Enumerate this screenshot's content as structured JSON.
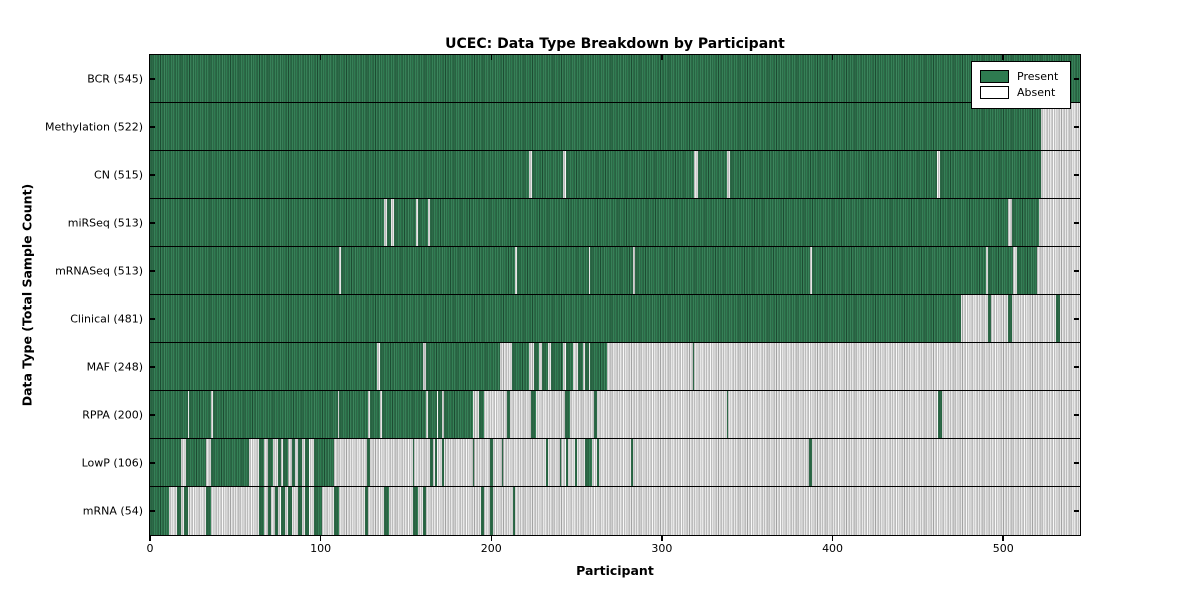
{
  "title": "UCEC: Data Type Breakdown by Participant",
  "xlabel": "Participant",
  "ylabel": "Data Type (Total Sample Count)",
  "colors": {
    "present": "#2e7b50",
    "absent": "#d6d6d6",
    "frame": "#000000"
  },
  "legend": [
    {
      "label": "Present"
    },
    {
      "label": "Absent"
    }
  ],
  "chart_data": {
    "type": "heatmap",
    "x_max": 545,
    "x_ticks": [
      0,
      100,
      200,
      300,
      400,
      500
    ],
    "grid": false,
    "legend_position": "upper right",
    "rows": [
      {
        "name": "bcr",
        "label": "BCR (545)",
        "count": 545,
        "present": [
          [
            0,
            545
          ]
        ]
      },
      {
        "name": "methylation",
        "label": "Methylation (522)",
        "count": 522,
        "present": [
          [
            0,
            522
          ]
        ]
      },
      {
        "name": "cn",
        "label": "CN (515)",
        "count": 515,
        "present": [
          [
            0,
            222
          ],
          [
            224,
            242
          ],
          [
            244,
            319
          ],
          [
            321,
            338
          ],
          [
            340,
            461
          ],
          [
            463,
            522
          ]
        ]
      },
      {
        "name": "mirseq",
        "label": "miRSeq (513)",
        "count": 513,
        "present": [
          [
            0,
            137
          ],
          [
            139,
            141
          ],
          [
            143,
            156
          ],
          [
            157,
            163
          ],
          [
            164,
            503
          ],
          [
            505,
            521
          ]
        ]
      },
      {
        "name": "mrnaseq",
        "label": "mRNASeq (513)",
        "count": 513,
        "present": [
          [
            0,
            111
          ],
          [
            112,
            214
          ],
          [
            215,
            257
          ],
          [
            258,
            283
          ],
          [
            284,
            387
          ],
          [
            388,
            490
          ],
          [
            491,
            506
          ],
          [
            508,
            520
          ]
        ]
      },
      {
        "name": "clinical",
        "label": "Clinical (481)",
        "count": 481,
        "present": [
          [
            0,
            475
          ],
          [
            491,
            493
          ],
          [
            503,
            505
          ],
          [
            531,
            533
          ]
        ]
      },
      {
        "name": "maf",
        "label": "MAF (248)",
        "count": 248,
        "present": [
          [
            0,
            133
          ],
          [
            135,
            160
          ],
          [
            162,
            205
          ],
          [
            212,
            222
          ],
          [
            225,
            228
          ],
          [
            230,
            233
          ],
          [
            235,
            242
          ],
          [
            244,
            248
          ],
          [
            251,
            254
          ],
          [
            255,
            257
          ],
          [
            258,
            268
          ],
          [
            318,
            319
          ]
        ]
      },
      {
        "name": "rppa",
        "label": "RPPA (200)",
        "count": 200,
        "present": [
          [
            0,
            22
          ],
          [
            23,
            36
          ],
          [
            37,
            110
          ],
          [
            111,
            128
          ],
          [
            129,
            135
          ],
          [
            136,
            162
          ],
          [
            163,
            168
          ],
          [
            169,
            171
          ],
          [
            172,
            189
          ],
          [
            193,
            196
          ],
          [
            209,
            211
          ],
          [
            223,
            226
          ],
          [
            243,
            246
          ],
          [
            260,
            262
          ],
          [
            338,
            339
          ],
          [
            462,
            464
          ]
        ]
      },
      {
        "name": "lowp",
        "label": "LowP (106)",
        "count": 106,
        "present": [
          [
            0,
            18
          ],
          [
            21,
            33
          ],
          [
            36,
            58
          ],
          [
            64,
            67
          ],
          [
            69,
            72
          ],
          [
            75,
            77
          ],
          [
            78,
            81
          ],
          [
            83,
            85
          ],
          [
            87,
            89
          ],
          [
            91,
            93
          ],
          [
            96,
            108
          ],
          [
            127,
            129
          ],
          [
            154,
            155
          ],
          [
            164,
            166
          ],
          [
            167,
            168
          ],
          [
            171,
            172
          ],
          [
            189,
            190
          ],
          [
            199,
            201
          ],
          [
            206,
            207
          ],
          [
            232,
            233
          ],
          [
            240,
            241
          ],
          [
            244,
            245
          ],
          [
            249,
            250
          ],
          [
            255,
            259
          ],
          [
            262,
            263
          ],
          [
            282,
            283
          ],
          [
            386,
            388
          ]
        ]
      },
      {
        "name": "mrna",
        "label": "mRNA (54)",
        "count": 54,
        "present": [
          [
            0,
            11
          ],
          [
            16,
            18
          ],
          [
            20,
            22
          ],
          [
            33,
            36
          ],
          [
            64,
            67
          ],
          [
            69,
            71
          ],
          [
            73,
            75
          ],
          [
            77,
            79
          ],
          [
            81,
            83
          ],
          [
            87,
            89
          ],
          [
            91,
            93
          ],
          [
            96,
            101
          ],
          [
            108,
            111
          ],
          [
            126,
            128
          ],
          [
            137,
            140
          ],
          [
            154,
            157
          ],
          [
            160,
            162
          ],
          [
            194,
            196
          ],
          [
            199,
            201
          ],
          [
            213,
            214
          ]
        ]
      }
    ]
  }
}
